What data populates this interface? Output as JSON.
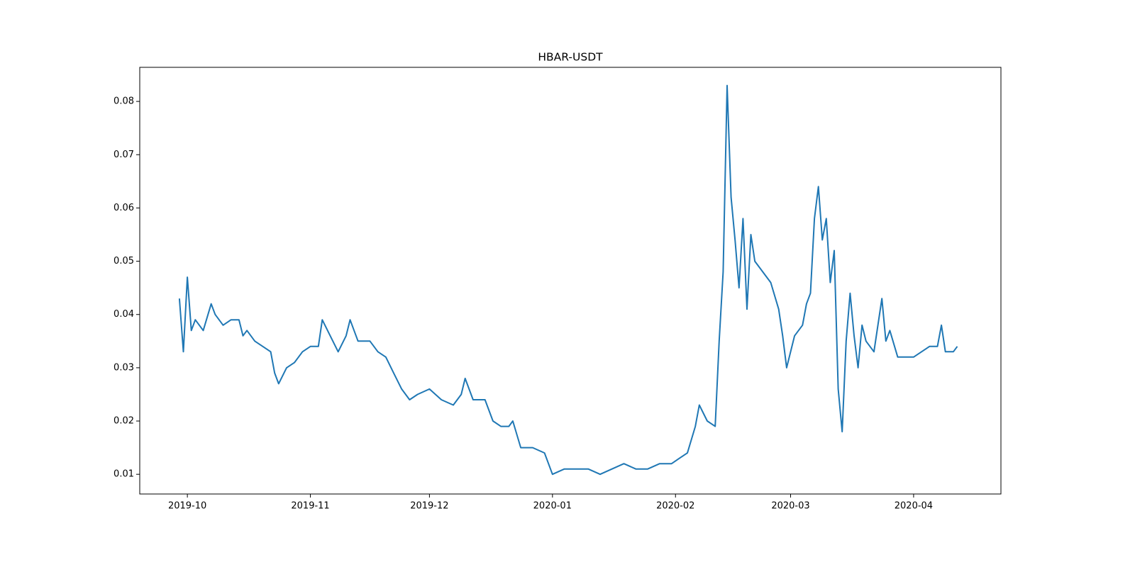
{
  "chart_data": {
    "type": "line",
    "title": "HBAR-USDT",
    "x": [
      "2019-09-29",
      "2019-09-30",
      "2019-10-01",
      "2019-10-02",
      "2019-10-03",
      "2019-10-05",
      "2019-10-07",
      "2019-10-08",
      "2019-10-10",
      "2019-10-12",
      "2019-10-14",
      "2019-10-15",
      "2019-10-16",
      "2019-10-18",
      "2019-10-20",
      "2019-10-22",
      "2019-10-23",
      "2019-10-24",
      "2019-10-26",
      "2019-10-28",
      "2019-10-30",
      "2019-11-01",
      "2019-11-03",
      "2019-11-04",
      "2019-11-06",
      "2019-11-08",
      "2019-11-10",
      "2019-11-11",
      "2019-11-13",
      "2019-11-16",
      "2019-11-18",
      "2019-11-20",
      "2019-11-22",
      "2019-11-24",
      "2019-11-26",
      "2019-11-28",
      "2019-12-01",
      "2019-12-04",
      "2019-12-07",
      "2019-12-09",
      "2019-12-10",
      "2019-12-12",
      "2019-12-15",
      "2019-12-17",
      "2019-12-19",
      "2019-12-21",
      "2019-12-22",
      "2019-12-24",
      "2019-12-27",
      "2019-12-30",
      "2020-01-01",
      "2020-01-04",
      "2020-01-07",
      "2020-01-10",
      "2020-01-13",
      "2020-01-16",
      "2020-01-19",
      "2020-01-22",
      "2020-01-25",
      "2020-01-28",
      "2020-01-31",
      "2020-02-02",
      "2020-02-04",
      "2020-02-06",
      "2020-02-07",
      "2020-02-09",
      "2020-02-11",
      "2020-02-12",
      "2020-02-13",
      "2020-02-14",
      "2020-02-15",
      "2020-02-16",
      "2020-02-17",
      "2020-02-18",
      "2020-02-19",
      "2020-02-20",
      "2020-02-21",
      "2020-02-23",
      "2020-02-25",
      "2020-02-27",
      "2020-02-28",
      "2020-02-29",
      "2020-03-02",
      "2020-03-04",
      "2020-03-05",
      "2020-03-06",
      "2020-03-07",
      "2020-03-08",
      "2020-03-09",
      "2020-03-10",
      "2020-03-11",
      "2020-03-12",
      "2020-03-13",
      "2020-03-14",
      "2020-03-15",
      "2020-03-16",
      "2020-03-17",
      "2020-03-18",
      "2020-03-19",
      "2020-03-20",
      "2020-03-22",
      "2020-03-24",
      "2020-03-25",
      "2020-03-26",
      "2020-03-28",
      "2020-03-30",
      "2020-04-01",
      "2020-04-03",
      "2020-04-05",
      "2020-04-07",
      "2020-04-08",
      "2020-04-09",
      "2020-04-11",
      "2020-04-12"
    ],
    "values": [
      0.043,
      0.033,
      0.047,
      0.037,
      0.039,
      0.037,
      0.042,
      0.04,
      0.038,
      0.039,
      0.039,
      0.036,
      0.037,
      0.035,
      0.034,
      0.033,
      0.029,
      0.027,
      0.03,
      0.031,
      0.033,
      0.034,
      0.034,
      0.039,
      0.036,
      0.033,
      0.036,
      0.039,
      0.035,
      0.035,
      0.033,
      0.032,
      0.029,
      0.026,
      0.024,
      0.025,
      0.026,
      0.024,
      0.023,
      0.025,
      0.028,
      0.024,
      0.024,
      0.02,
      0.019,
      0.019,
      0.02,
      0.015,
      0.015,
      0.014,
      0.01,
      0.011,
      0.011,
      0.011,
      0.01,
      0.011,
      0.012,
      0.011,
      0.011,
      0.012,
      0.012,
      0.013,
      0.014,
      0.019,
      0.023,
      0.02,
      0.019,
      0.035,
      0.048,
      0.083,
      0.062,
      0.054,
      0.045,
      0.058,
      0.041,
      0.055,
      0.05,
      0.048,
      0.046,
      0.041,
      0.036,
      0.03,
      0.036,
      0.038,
      0.042,
      0.044,
      0.058,
      0.064,
      0.054,
      0.058,
      0.046,
      0.052,
      0.026,
      0.018,
      0.035,
      0.044,
      0.036,
      0.03,
      0.038,
      0.035,
      0.033,
      0.043,
      0.035,
      0.037,
      0.032,
      0.032,
      0.032,
      0.033,
      0.034,
      0.034,
      0.038,
      0.033,
      0.033,
      0.034
    ],
    "color": "#1f77b4",
    "xlim": [
      "2019-09-19",
      "2020-04-23"
    ],
    "xticks": [
      {
        "value": "2019-10-01",
        "label": "2019-10"
      },
      {
        "value": "2019-11-01",
        "label": "2019-11"
      },
      {
        "value": "2019-12-01",
        "label": "2019-12"
      },
      {
        "value": "2020-01-01",
        "label": "2020-01"
      },
      {
        "value": "2020-02-01",
        "label": "2020-02"
      },
      {
        "value": "2020-03-01",
        "label": "2020-03"
      },
      {
        "value": "2020-04-01",
        "label": "2020-04"
      }
    ],
    "ylim": [
      0.0063,
      0.0864
    ],
    "yticks": [
      0.01,
      0.02,
      0.03,
      0.04,
      0.05,
      0.06,
      0.07,
      0.08
    ]
  }
}
